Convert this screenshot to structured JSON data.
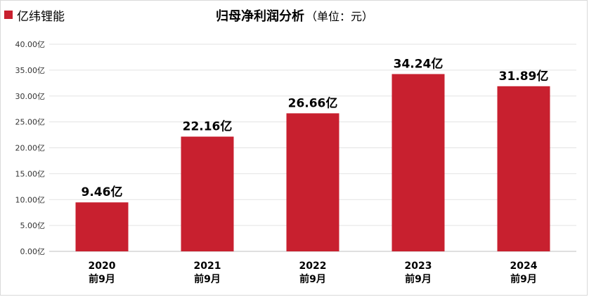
{
  "chart_data": {
    "type": "bar",
    "title": "归母净利润分析",
    "subtitle": "（单位：元）",
    "legend": {
      "label": "亿纬锂能",
      "placement": "top-left",
      "color": "#c8202f"
    },
    "categories": [
      {
        "year": "2020",
        "period": "前9月"
      },
      {
        "year": "2021",
        "period": "前9月"
      },
      {
        "year": "2022",
        "period": "前9月"
      },
      {
        "year": "2023",
        "period": "前9月"
      },
      {
        "year": "2024",
        "period": "前9月"
      }
    ],
    "series": [
      {
        "name": "亿纬锂能",
        "values": [
          9.46,
          22.16,
          26.66,
          34.24,
          31.89
        ],
        "data_labels": [
          "9.46亿",
          "22.16亿",
          "26.66亿",
          "34.24亿",
          "31.89亿"
        ]
      }
    ],
    "y_ticks": [
      "0.00亿",
      "5.00亿",
      "10.00亿",
      "15.00亿",
      "20.00亿",
      "25.00亿",
      "30.00亿",
      "35.00亿",
      "40.00亿"
    ],
    "ylim": [
      0,
      40
    ],
    "grid": true,
    "bar_color": "#c8202f"
  }
}
